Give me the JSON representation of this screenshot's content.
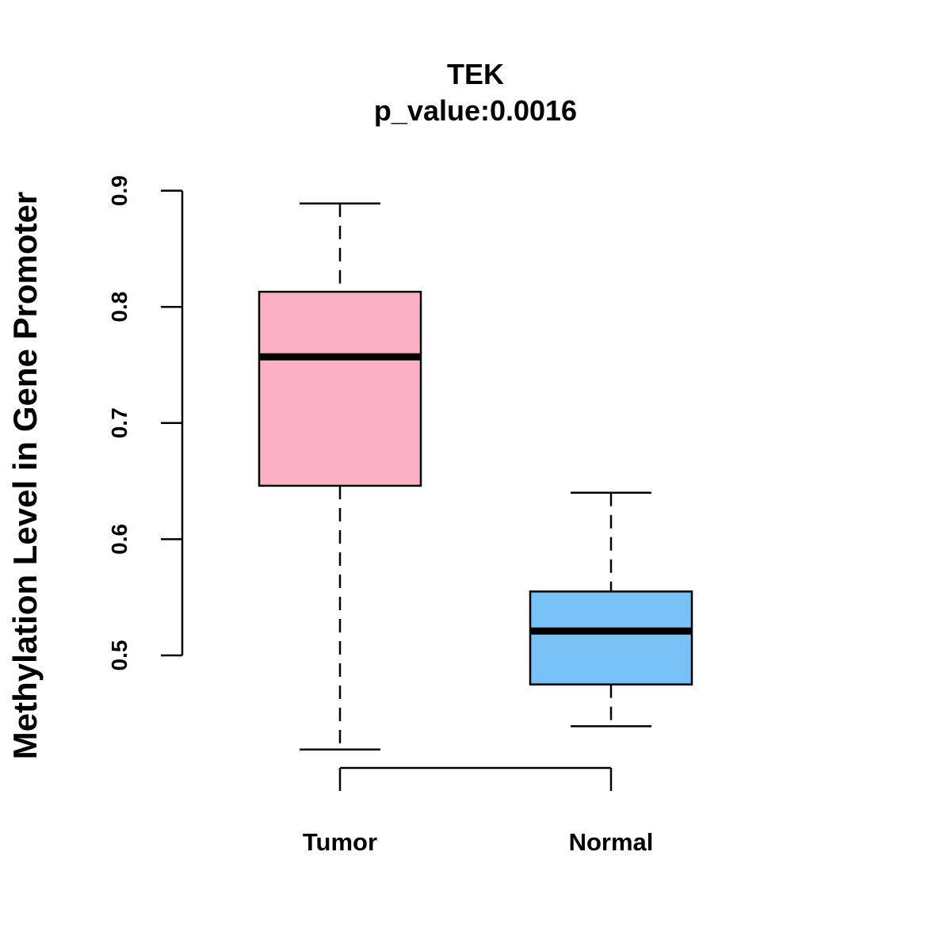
{
  "chart_data": {
    "type": "box",
    "title": "TEK",
    "subtitle": "p_value:0.0016",
    "xlabel": "",
    "ylabel": "Methylation Level in Gene Promoter",
    "ylim": [
      0.5,
      0.9
    ],
    "yticks": [
      "0.5",
      "0.6",
      "0.7",
      "0.8",
      "0.9"
    ],
    "grid": false,
    "legend": "none",
    "categories": [
      "Tumor",
      "Normal"
    ],
    "series": [
      {
        "name": "Tumor",
        "color": "#FBB1C3",
        "whisker_low": 0.419,
        "q1": 0.646,
        "median": 0.757,
        "q3": 0.813,
        "whisker_high": 0.889
      },
      {
        "name": "Normal",
        "color": "#77C1F7",
        "whisker_low": 0.439,
        "q1": 0.475,
        "median": 0.521,
        "q3": 0.555,
        "whisker_high": 0.64
      }
    ]
  }
}
